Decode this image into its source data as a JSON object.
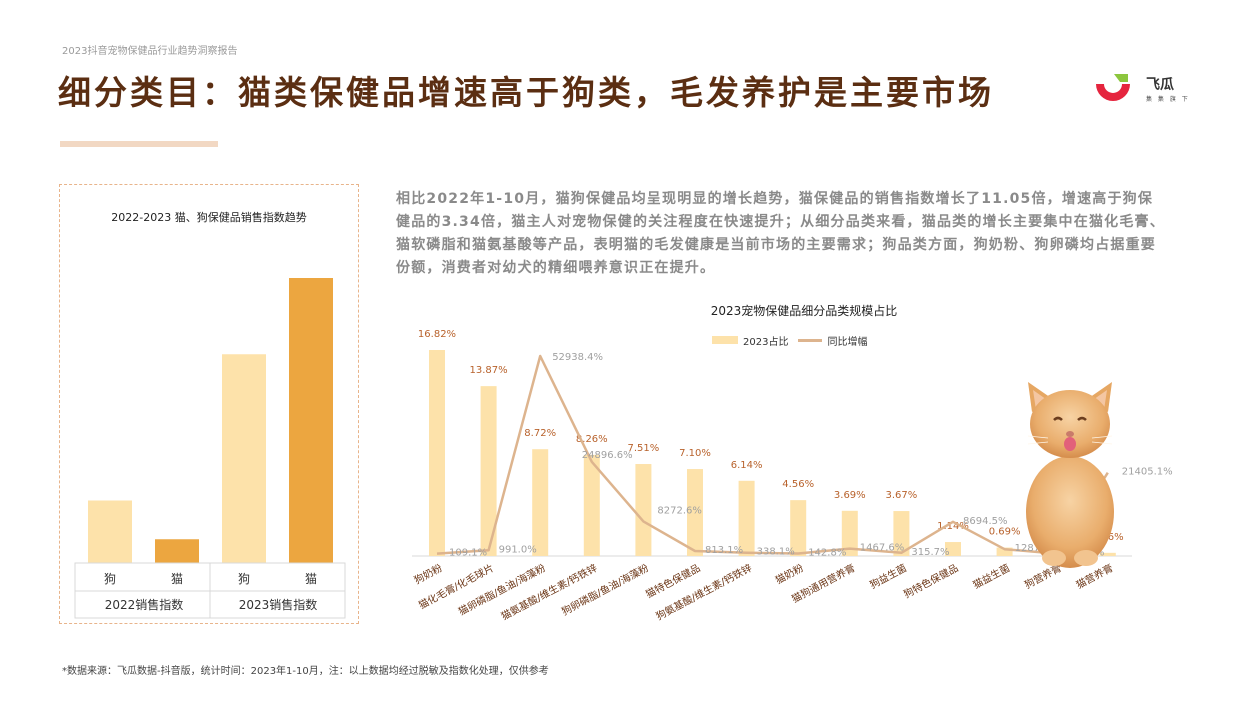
{
  "header": {
    "report_tag": "2023抖音宠物保健品行业趋势洞察报告",
    "title": "细分类目：猫类保健品增速高于狗类，毛发养护是主要市场",
    "logo_name": "飞瓜",
    "logo_slogan": "集 集 旗 下"
  },
  "description": "相比2022年1-10月，猫狗保健品均呈现明显的增长趋势，猫保健品的销售指数增长了11.05倍，增速高于狗保健品的3.34倍，猫主人对宠物保健的关注程度在快速提升；从细分品类来看，猫品类的增长主要集中在猫化毛膏、猫软磷脂和猫氨基酸等产品，表明猫的毛发健康是当前市场的主要需求；狗品类方面，狗奶粉、狗卵磷均占据重要份额，消费者对幼犬的精细喂养意识正在提升。",
  "footnote": "*数据来源：飞瓜数据-抖音版，统计时间：2023年1-10月，注：以上数据均经过脱敏及指数化处理，仅供参考",
  "chart_data": [
    {
      "type": "bar",
      "title": "2022-2023 猫、狗保健品销售指数趋势",
      "groups": [
        {
          "label": "2022销售指数",
          "categories": [
            "狗",
            "猫"
          ],
          "values": [
            25,
            9.5
          ]
        },
        {
          "label": "2023销售指数",
          "categories": [
            "狗",
            "猫"
          ],
          "values": [
            83.5,
            114
          ]
        }
      ],
      "colors": {
        "狗": "#fde2aa",
        "猫": "#eca640"
      },
      "ylim": [
        0,
        120
      ]
    },
    {
      "type": "bar+line",
      "title": "2023宠物保健品细分品类规模占比",
      "legend": [
        "2023占比",
        "同比增幅"
      ],
      "categories": [
        "狗奶粉",
        "猫化毛膏/化毛球片",
        "猫卵磷脂/鱼油/海藻粉",
        "猫氨基酸/维生素/钙铁锌",
        "狗卵磷脂/鱼油/海藻粉",
        "猫特色保健品",
        "狗氨基酸/维生素/钙铁锌",
        "猫奶粉",
        "猫狗通用营养膏",
        "狗益生菌",
        "狗特色保健品",
        "猫益生菌",
        "狗营养膏",
        "猫营养膏"
      ],
      "bar_values": [
        16.82,
        13.87,
        8.72,
        8.26,
        7.51,
        7.1,
        6.14,
        4.56,
        3.69,
        3.67,
        1.14,
        0.69,
        0.59,
        0.26
      ],
      "bar_labels": [
        "16.82%",
        "13.87%",
        "8.72%",
        "8.26%",
        "7.51%",
        "7.10%",
        "6.14%",
        "4.56%",
        "3.69%",
        "3.67%",
        "1.14%",
        "0.69%",
        "0.59%",
        "0.26%"
      ],
      "line_values": [
        109.1,
        991.0,
        52938.4,
        24896.6,
        8272.6,
        813.1,
        338.1,
        142.8,
        1467.6,
        315.7,
        8694.5,
        1287.8,
        101.1,
        21405.1
      ],
      "line_labels": [
        "109.1%",
        "991.0%",
        "52938.4%",
        "24896.6%",
        "8272.6%",
        "813.1%",
        "338.1%",
        "142.8%",
        "1467.6%",
        "315.7%",
        "8694.5%",
        "1287.8%",
        "101.1%",
        "21405.1%"
      ],
      "bar_ylim": [
        0,
        18
      ],
      "line_ylim": [
        0,
        56000
      ],
      "colors": {
        "bar": "#fde2aa",
        "line": "#ddb48e",
        "bar_label": "#b8622c",
        "line_label": "#a0a0a0",
        "category_label": "#6b3515"
      }
    }
  ]
}
